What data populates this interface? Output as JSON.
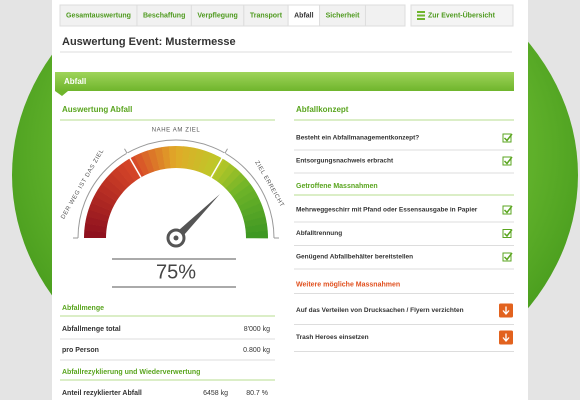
{
  "tabs": [
    "Gesamtauswertung",
    "Beschaffung",
    "Verpflegung",
    "Transport",
    "Abfall",
    "Sicherheit"
  ],
  "active_tab": 4,
  "overview_button": "Zur Event-Übersicht",
  "title": "Auswertung Event: Mustermesse",
  "section": "Abfall",
  "left": {
    "heading": "Auswertung Abfall",
    "gauge": {
      "labels": [
        "DER WEG IST DAS ZIEL",
        "NAHE AM ZIEL",
        "ZIEL ERREICHT"
      ],
      "value": 75,
      "value_label": "75%"
    },
    "groups": [
      {
        "heading": "Abfallmenge",
        "rows": [
          [
            "Abfallmenge total",
            "8'000 kg"
          ],
          [
            "pro Person",
            "0.800 kg"
          ]
        ]
      },
      {
        "heading": "Abfallrezyklierung und Wiederverwertung",
        "rows": [
          [
            "Anteil rezyklierter Abfall",
            "6458 kg",
            "80.7 %"
          ]
        ]
      }
    ]
  },
  "right": {
    "heading": "Abfallkonzept",
    "concept": [
      "Besteht ein Abfallmanagementkonzept?",
      "Entsorgungsnachweis erbracht"
    ],
    "groups": [
      {
        "heading": "Getroffene Massnahmen",
        "items": [
          "Mehrweggeschirr mit Pfand oder Essensausgabe in Papier",
          "Abfalltrennung",
          "Genügend Abfallbehälter bereitstellen"
        ]
      },
      {
        "heading": "Weitere mögliche Massnahmen",
        "items": [
          "Auf das Verteilen von Drucksachen / Flyern verzichten",
          "Trash Heroes einsetzen"
        ]
      }
    ]
  }
}
